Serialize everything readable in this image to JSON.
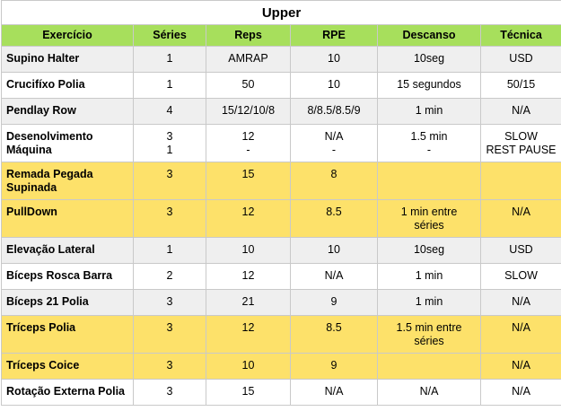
{
  "title": "Upper",
  "columns": [
    "Exercício",
    "Séries",
    "Reps",
    "RPE",
    "Descanso",
    "Técnica"
  ],
  "colors": {
    "header_bg": "#a7df5c",
    "highlight_row": "#fde16a",
    "alt_row": "#efefef"
  },
  "rows": [
    {
      "highlight": false,
      "cells": [
        [
          "Supino Halter"
        ],
        [
          "1"
        ],
        [
          "AMRAP"
        ],
        [
          "10"
        ],
        [
          "10seg"
        ],
        [
          "USD"
        ]
      ]
    },
    {
      "highlight": false,
      "cells": [
        [
          "Crucifíxo Polia"
        ],
        [
          "1"
        ],
        [
          "50"
        ],
        [
          "10"
        ],
        [
          "15 segundos"
        ],
        [
          "50/15"
        ]
      ]
    },
    {
      "highlight": false,
      "cells": [
        [
          "Pendlay Row"
        ],
        [
          "4"
        ],
        [
          "15/12/10/8"
        ],
        [
          "8/8.5/8.5/9"
        ],
        [
          "1 min"
        ],
        [
          "N/A"
        ]
      ]
    },
    {
      "highlight": false,
      "cells": [
        [
          "Desenolvimento",
          "Máquina"
        ],
        [
          "3",
          "1"
        ],
        [
          "12",
          "-"
        ],
        [
          "N/A",
          "-"
        ],
        [
          "1.5 min",
          "-"
        ],
        [
          "SLOW",
          "REST PAUSE"
        ]
      ]
    },
    {
      "highlight": true,
      "cells": [
        [
          "Remada Pegada",
          "Supinada"
        ],
        [
          "3"
        ],
        [
          "15"
        ],
        [
          "8"
        ],
        [],
        []
      ]
    },
    {
      "highlight": true,
      "cells": [
        [
          "PullDown"
        ],
        [
          "3"
        ],
        [
          "12"
        ],
        [
          "8.5"
        ],
        [
          "1 min entre",
          "séries"
        ],
        [
          "N/A"
        ]
      ]
    },
    {
      "highlight": false,
      "cells": [
        [
          "Elevação Lateral"
        ],
        [
          "1"
        ],
        [
          "10"
        ],
        [
          "10"
        ],
        [
          "10seg"
        ],
        [
          "USD"
        ]
      ]
    },
    {
      "highlight": false,
      "cells": [
        [
          "Bíceps Rosca Barra"
        ],
        [
          "2"
        ],
        [
          "12"
        ],
        [
          "N/A"
        ],
        [
          "1 min"
        ],
        [
          "SLOW"
        ]
      ]
    },
    {
      "highlight": false,
      "cells": [
        [
          "Bíceps 21 Polia"
        ],
        [
          "3"
        ],
        [
          "21"
        ],
        [
          "9"
        ],
        [
          "1 min"
        ],
        [
          "N/A"
        ]
      ]
    },
    {
      "highlight": true,
      "cells": [
        [
          "Tríceps Polia"
        ],
        [
          "3"
        ],
        [
          "12"
        ],
        [
          "8.5"
        ],
        [
          "1.5 min entre",
          "séries"
        ],
        [
          "N/A"
        ]
      ]
    },
    {
      "highlight": true,
      "cells": [
        [
          "Tríceps Coice"
        ],
        [
          "3"
        ],
        [
          "10"
        ],
        [
          "9"
        ],
        [],
        [
          "N/A"
        ]
      ]
    },
    {
      "highlight": false,
      "cells": [
        [
          "Rotação Externa Polia"
        ],
        [
          "3"
        ],
        [
          "15"
        ],
        [
          "N/A"
        ],
        [
          "N/A"
        ],
        [
          "N/A"
        ]
      ]
    }
  ]
}
